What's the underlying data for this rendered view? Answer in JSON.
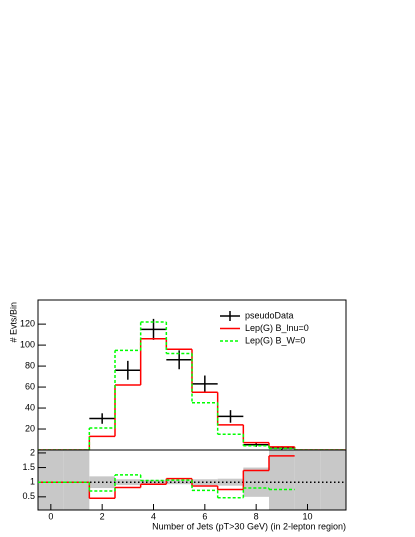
{
  "chart_data": [
    {
      "type": "step",
      "ylabel": "# Evts/Bin",
      "x": [
        0,
        1,
        2,
        3,
        4,
        5,
        6,
        7,
        8,
        9,
        10,
        11
      ],
      "xlim": [
        -0.5,
        11.5
      ],
      "ylim": [
        0,
        143
      ],
      "yticks": [
        20,
        40,
        60,
        80,
        100,
        120
      ],
      "series": [
        {
          "name": "pseudoData",
          "color": "#000000",
          "style": "points",
          "values": [
            null,
            null,
            30,
            76,
            115,
            86,
            63,
            32,
            5,
            2,
            null,
            null
          ],
          "errors": [
            null,
            null,
            5,
            9,
            10,
            9,
            8,
            6,
            2,
            1.5,
            null,
            null
          ]
        },
        {
          "name": "Lep(G) B_lnu=0",
          "color": "#ff0000",
          "style": "solid",
          "values": [
            0,
            0,
            13,
            62,
            106,
            96,
            55,
            24,
            7,
            3,
            0,
            0
          ]
        },
        {
          "name": "Lep(G) B_W=0",
          "color": "#00ff00",
          "style": "dashed",
          "values": [
            0,
            0,
            21,
            95,
            122,
            92,
            45,
            15,
            4,
            1.5,
            0,
            0
          ]
        }
      ]
    },
    {
      "type": "ratio",
      "xlabel": "Number of Jets (pT>30 GeV) (in 2-lepton region)",
      "x": [
        0,
        1,
        2,
        3,
        4,
        5,
        6,
        7,
        8,
        9,
        10,
        11
      ],
      "xlim": [
        -0.5,
        11.5
      ],
      "xticks": [
        0,
        2,
        4,
        6,
        8,
        10
      ],
      "ylim": [
        0.05,
        2.1
      ],
      "yticks": [
        0.5,
        1,
        1.5,
        2
      ],
      "reference_line": 1,
      "band": {
        "color": "#c8c8c8",
        "lower": [
          0.05,
          0.05,
          0.8,
          0.9,
          0.92,
          0.93,
          0.9,
          0.88,
          0.5,
          0.05,
          0.05,
          0.05
        ],
        "upper": [
          2.1,
          2.1,
          1.2,
          1.1,
          1.08,
          1.07,
          1.1,
          1.12,
          1.5,
          2.1,
          2.1,
          2.1
        ]
      },
      "series": [
        {
          "color": "#ff0000",
          "style": "solid",
          "values": [
            1,
            1,
            0.45,
            0.82,
            0.93,
            1.12,
            0.87,
            0.75,
            1.4,
            1.9,
            null,
            null
          ]
        },
        {
          "color": "#00ff00",
          "style": "dashed",
          "values": [
            1,
            1,
            0.7,
            1.25,
            1.06,
            1.07,
            0.72,
            0.47,
            0.8,
            0.75,
            null,
            null
          ]
        }
      ]
    }
  ]
}
